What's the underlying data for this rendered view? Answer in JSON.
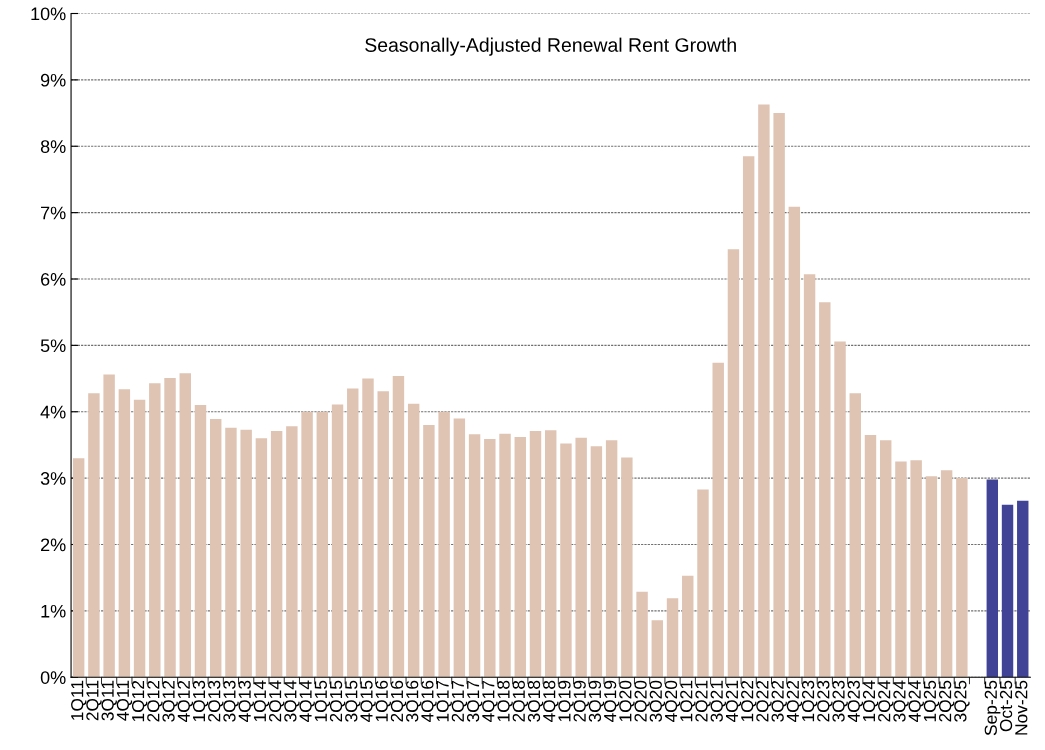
{
  "chart_data": {
    "type": "bar",
    "title": "Seasonally-Adjusted Renewal Rent Growth",
    "categories": [
      "1Q11",
      "2Q11",
      "3Q11",
      "4Q11",
      "1Q12",
      "2Q12",
      "3Q12",
      "4Q12",
      "1Q13",
      "2Q13",
      "3Q13",
      "4Q13",
      "1Q14",
      "2Q14",
      "3Q14",
      "4Q14",
      "1Q15",
      "2Q15",
      "3Q15",
      "4Q15",
      "1Q16",
      "2Q16",
      "3Q16",
      "4Q16",
      "1Q17",
      "2Q17",
      "3Q17",
      "4Q17",
      "1Q18",
      "2Q18",
      "3Q18",
      "4Q18",
      "1Q19",
      "2Q19",
      "3Q19",
      "4Q19",
      "1Q20",
      "2Q20",
      "3Q20",
      "4Q20",
      "1Q21",
      "2Q21",
      "3Q21",
      "4Q21",
      "1Q22",
      "2Q22",
      "3Q22",
      "4Q22",
      "1Q23",
      "2Q23",
      "3Q23",
      "4Q23",
      "1Q24",
      "2Q24",
      "3Q24",
      "4Q24",
      "1Q25",
      "2Q25",
      "3Q25",
      null,
      "Sep-25",
      "Oct-25",
      "Nov-25"
    ],
    "values": [
      3.3,
      4.28,
      4.56,
      4.34,
      4.18,
      4.43,
      4.51,
      4.58,
      4.1,
      3.89,
      3.76,
      3.73,
      3.6,
      3.71,
      3.78,
      4.0,
      4.0,
      4.11,
      4.35,
      4.5,
      4.31,
      4.54,
      4.12,
      3.8,
      4.0,
      3.9,
      3.66,
      3.59,
      3.67,
      3.62,
      3.71,
      3.72,
      3.52,
      3.61,
      3.48,
      3.57,
      3.31,
      1.29,
      0.86,
      1.19,
      1.53,
      2.83,
      4.74,
      6.45,
      7.85,
      8.63,
      8.5,
      7.09,
      6.07,
      5.65,
      5.06,
      4.28,
      3.65,
      3.57,
      3.25,
      3.27,
      3.03,
      3.12,
      3.0,
      null,
      2.98,
      2.6,
      2.66
    ],
    "colors": [
      "#dfc3b3",
      "#dfc3b3",
      "#dfc3b3",
      "#dfc3b3",
      "#dfc3b3",
      "#dfc3b3",
      "#dfc3b3",
      "#dfc3b3",
      "#dfc3b3",
      "#dfc3b3",
      "#dfc3b3",
      "#dfc3b3",
      "#dfc3b3",
      "#dfc3b3",
      "#dfc3b3",
      "#dfc3b3",
      "#dfc3b3",
      "#dfc3b3",
      "#dfc3b3",
      "#dfc3b3",
      "#dfc3b3",
      "#dfc3b3",
      "#dfc3b3",
      "#dfc3b3",
      "#dfc3b3",
      "#dfc3b3",
      "#dfc3b3",
      "#dfc3b3",
      "#dfc3b3",
      "#dfc3b3",
      "#dfc3b3",
      "#dfc3b3",
      "#dfc3b3",
      "#dfc3b3",
      "#dfc3b3",
      "#dfc3b3",
      "#dfc3b3",
      "#dfc3b3",
      "#dfc3b3",
      "#dfc3b3",
      "#dfc3b3",
      "#dfc3b3",
      "#dfc3b3",
      "#dfc3b3",
      "#dfc3b3",
      "#dfc3b3",
      "#dfc3b3",
      "#dfc3b3",
      "#dfc3b3",
      "#dfc3b3",
      "#dfc3b3",
      "#dfc3b3",
      "#dfc3b3",
      "#dfc3b3",
      "#dfc3b3",
      "#dfc3b3",
      "#dfc3b3",
      "#dfc3b3",
      "#dfc3b3",
      "#dfc3b3",
      "#414496",
      "#414496",
      "#414496"
    ],
    "ylim": [
      0,
      10
    ],
    "yticks": [
      {
        "value": 0,
        "label": "0%"
      },
      {
        "value": 1,
        "label": "1%"
      },
      {
        "value": 2,
        "label": "2%"
      },
      {
        "value": 3,
        "label": "3%"
      },
      {
        "value": 4,
        "label": "4%"
      },
      {
        "value": 5,
        "label": "5%"
      },
      {
        "value": 6,
        "label": "6%"
      },
      {
        "value": 7,
        "label": "7%"
      },
      {
        "value": 8,
        "label": "8%"
      },
      {
        "value": 9,
        "label": "9%"
      },
      {
        "value": 10,
        "label": "10%"
      }
    ],
    "grid": "y"
  }
}
